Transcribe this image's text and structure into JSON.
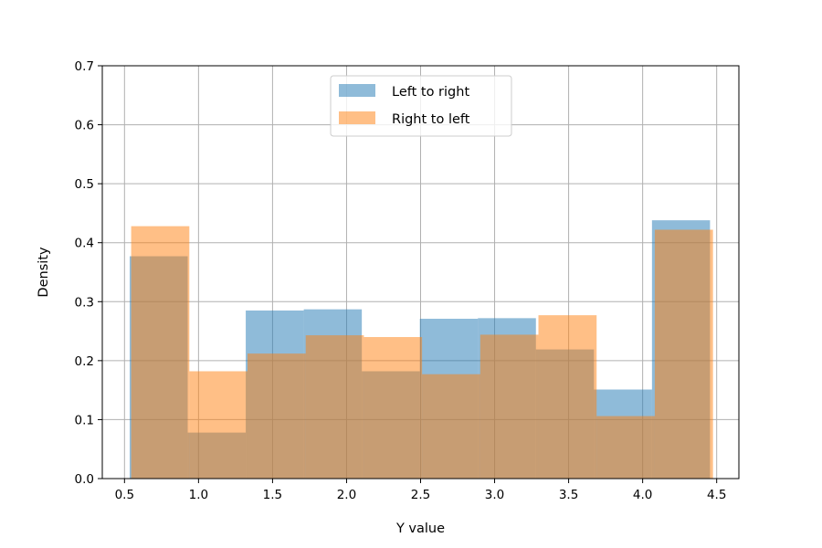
{
  "chart_data": {
    "type": "bar",
    "subtype": "overlapping-histogram",
    "xlabel": "Y value",
    "ylabel": "Density",
    "xlim": [
      0.35,
      4.65
    ],
    "ylim": [
      0,
      0.7
    ],
    "x_ticks": [
      0.5,
      1.0,
      1.5,
      2.0,
      2.5,
      3.0,
      3.5,
      4.0,
      4.5
    ],
    "x_tick_labels": [
      "0.5",
      "1.0",
      "1.5",
      "2.0",
      "2.5",
      "3.0",
      "3.5",
      "4.0",
      "4.5"
    ],
    "y_ticks": [
      0.0,
      0.1,
      0.2,
      0.3,
      0.4,
      0.5,
      0.6,
      0.7
    ],
    "y_tick_labels": [
      "0.0",
      "0.1",
      "0.2",
      "0.3",
      "0.4",
      "0.5",
      "0.6",
      "0.7"
    ],
    "grid": true,
    "legend_position": "upper-center",
    "series": [
      {
        "name": "Left to right",
        "color": "#1f77b4",
        "opacity": 0.5,
        "bin_edges": [
          0.535,
          0.927,
          1.319,
          1.711,
          2.103,
          2.495,
          2.887,
          3.279,
          3.671,
          4.063,
          4.455
        ],
        "values": [
          0.377,
          0.078,
          0.285,
          0.287,
          0.182,
          0.271,
          0.272,
          0.219,
          0.151,
          0.438
        ]
      },
      {
        "name": "Right to left",
        "color": "#ff7f0e",
        "opacity": 0.5,
        "bin_edges": [
          0.545,
          0.938,
          1.331,
          1.724,
          2.117,
          2.51,
          2.903,
          3.296,
          3.689,
          4.082,
          4.475
        ],
        "values": [
          0.428,
          0.182,
          0.212,
          0.243,
          0.24,
          0.177,
          0.244,
          0.277,
          0.106,
          0.422
        ]
      }
    ]
  }
}
